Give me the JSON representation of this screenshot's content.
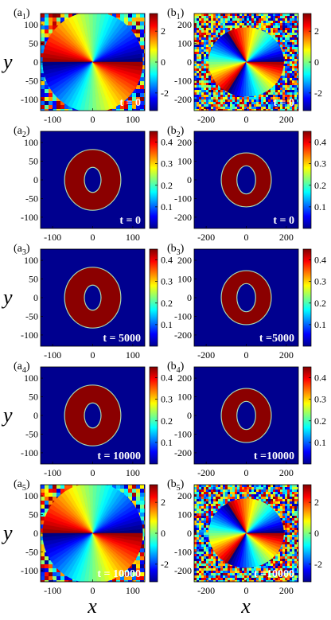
{
  "figure": {
    "xlabel": "x",
    "ylabel": "y",
    "panels": [
      {
        "id": "a1",
        "label": "(a",
        "sub": "1",
        "suffix": ")",
        "kind": "phase",
        "time": "t = 0",
        "background": "noise-bands",
        "inner": "disk",
        "ring": false
      },
      {
        "id": "b1",
        "label": "(b",
        "sub": "1",
        "suffix": ")",
        "kind": "phase",
        "time": "t = 0",
        "background": "noise-bands",
        "inner": "disk",
        "ring": false
      },
      {
        "id": "a2",
        "label": "(a",
        "sub": "2",
        "suffix": ")",
        "kind": "density",
        "time": "t = 0",
        "ring": true
      },
      {
        "id": "b2",
        "label": "(b",
        "sub": "2",
        "suffix": ")",
        "kind": "density",
        "time": "t = 0",
        "ring": true
      },
      {
        "id": "a3",
        "label": "(a",
        "sub": "3",
        "suffix": ")",
        "kind": "density",
        "time": "t = 5000",
        "ring": true
      },
      {
        "id": "b3",
        "label": "(b",
        "sub": "3",
        "suffix": ")",
        "kind": "density",
        "time": "t =5000",
        "ring": true
      },
      {
        "id": "a4",
        "label": "(a",
        "sub": "4",
        "suffix": ")",
        "kind": "density",
        "time": "t = 10000",
        "ring": true
      },
      {
        "id": "b4",
        "label": "(b",
        "sub": "4",
        "suffix": ")",
        "kind": "density",
        "time": "t =10000",
        "ring": true
      },
      {
        "id": "a5",
        "label": "(a",
        "sub": "5",
        "suffix": ")",
        "kind": "phase",
        "time": "t = 10000",
        "background": "noise",
        "inner": "disk",
        "ring": false
      },
      {
        "id": "b5",
        "label": "(b",
        "sub": "5",
        "suffix": ")",
        "kind": "phase",
        "time": "t =10000",
        "background": "noise",
        "inner": "disk",
        "ring": false
      }
    ],
    "axes": {
      "a": {
        "xticks": [
          "-100",
          "0",
          "100"
        ],
        "yticks": [
          "100",
          "50",
          "0",
          "-50",
          "-100"
        ],
        "xlim": [
          -130,
          130
        ],
        "ylim": [
          -130,
          130
        ]
      },
      "b": {
        "xticks": [
          "-200",
          "0",
          "200"
        ],
        "yticks": [
          "200",
          "100",
          "0",
          "-100",
          "-200"
        ],
        "xlim": [
          -260,
          260
        ],
        "ylim": [
          -260,
          260
        ]
      }
    },
    "colorbars": {
      "phase": {
        "ticks": [
          "2",
          "0",
          "-2"
        ],
        "range": [
          -3.14,
          3.14
        ]
      },
      "density": {
        "ticks": [
          "0.4",
          "0.3",
          "0.2",
          "0.1"
        ],
        "range": [
          0,
          0.45
        ]
      }
    },
    "colors": {
      "density_background": "#00008f",
      "density_ring": "#8b0000",
      "ring_edge": "#a8d8b0"
    }
  }
}
